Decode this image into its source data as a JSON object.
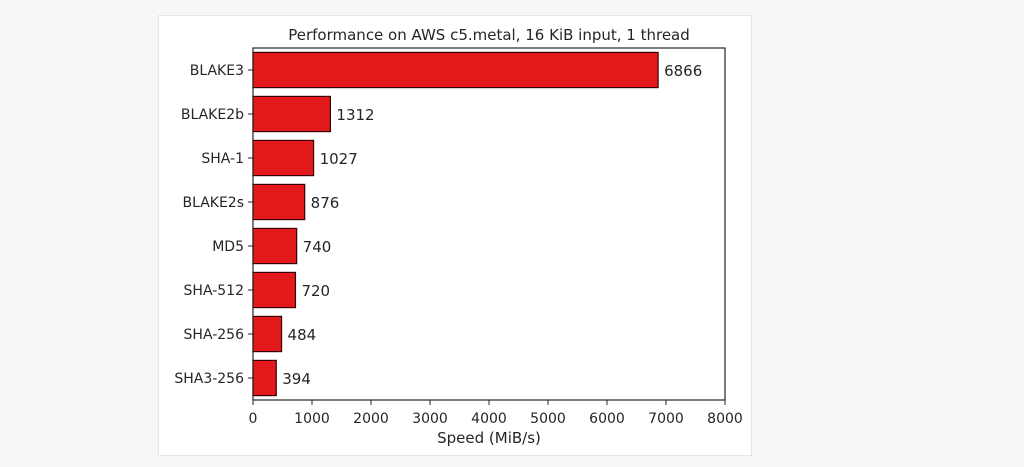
{
  "chart_data": {
    "type": "bar",
    "orientation": "horizontal",
    "title": "Performance on AWS c5.metal, 16 KiB input, 1 thread",
    "xlabel": "Speed (MiB/s)",
    "ylabel": "",
    "categories": [
      "BLAKE3",
      "BLAKE2b",
      "SHA-1",
      "BLAKE2s",
      "MD5",
      "SHA-512",
      "SHA-256",
      "SHA3-256"
    ],
    "values": [
      6866,
      1312,
      1027,
      876,
      740,
      720,
      484,
      394
    ],
    "value_labels": [
      "6866",
      "1312",
      "1027",
      "876",
      "740",
      "720",
      "484",
      "394"
    ],
    "xlim": [
      0,
      8000
    ],
    "xticks": [
      0,
      1000,
      2000,
      3000,
      4000,
      5000,
      6000,
      7000,
      8000
    ],
    "xtick_labels": [
      "0",
      "1000",
      "2000",
      "3000",
      "4000",
      "5000",
      "6000",
      "7000",
      "8000"
    ],
    "grid": false,
    "bar_color": "#e31a1c",
    "bar_edge_color": "#3a0000"
  }
}
